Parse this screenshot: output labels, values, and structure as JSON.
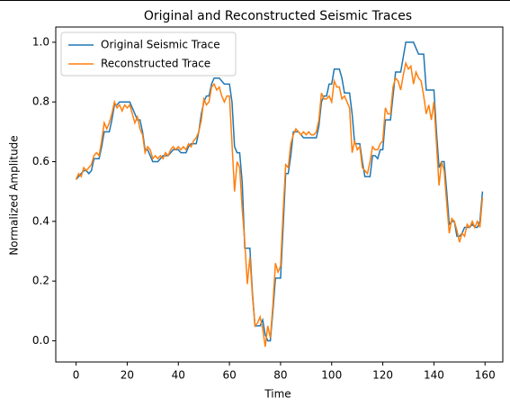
{
  "chart_data": {
    "type": "line",
    "title": "Original and Reconstructed Seismic Traces",
    "xlabel": "Time",
    "ylabel": "Normalized Amplitude",
    "x": [
      0,
      1,
      2,
      3,
      4,
      5,
      6,
      7,
      8,
      9,
      10,
      11,
      12,
      13,
      14,
      15,
      16,
      17,
      18,
      19,
      20,
      21,
      22,
      23,
      24,
      25,
      26,
      27,
      28,
      29,
      30,
      31,
      32,
      33,
      34,
      35,
      36,
      37,
      38,
      39,
      40,
      41,
      42,
      43,
      44,
      45,
      46,
      47,
      48,
      49,
      50,
      51,
      52,
      53,
      54,
      55,
      56,
      57,
      58,
      59,
      60,
      61,
      62,
      63,
      64,
      65,
      66,
      67,
      68,
      69,
      70,
      71,
      72,
      73,
      74,
      75,
      76,
      77,
      78,
      79,
      80,
      81,
      82,
      83,
      84,
      85,
      86,
      87,
      88,
      89,
      90,
      91,
      92,
      93,
      94,
      95,
      96,
      97,
      98,
      99,
      100,
      101,
      102,
      103,
      104,
      105,
      106,
      107,
      108,
      109,
      110,
      111,
      112,
      113,
      114,
      115,
      116,
      117,
      118,
      119,
      120,
      121,
      122,
      123,
      124,
      125,
      126,
      127,
      128,
      129,
      130,
      131,
      132,
      133,
      134,
      135,
      136,
      137,
      138,
      139,
      140,
      141,
      142,
      143,
      144,
      145,
      146,
      147,
      148,
      149,
      150,
      151,
      152,
      153,
      154,
      155,
      156,
      157,
      158,
      159
    ],
    "series": [
      {
        "name": "Original Seismic Trace",
        "color": "#1f77b4",
        "values": [
          0.54,
          0.55,
          0.56,
          0.57,
          0.57,
          0.56,
          0.57,
          0.61,
          0.61,
          0.61,
          0.65,
          0.7,
          0.7,
          0.7,
          0.74,
          0.79,
          0.79,
          0.8,
          0.8,
          0.8,
          0.8,
          0.8,
          0.78,
          0.76,
          0.74,
          0.74,
          0.7,
          0.64,
          0.64,
          0.62,
          0.6,
          0.6,
          0.6,
          0.61,
          0.62,
          0.62,
          0.62,
          0.63,
          0.64,
          0.64,
          0.64,
          0.63,
          0.63,
          0.63,
          0.65,
          0.66,
          0.66,
          0.66,
          0.7,
          0.76,
          0.8,
          0.82,
          0.82,
          0.86,
          0.88,
          0.88,
          0.88,
          0.87,
          0.86,
          0.86,
          0.86,
          0.8,
          0.65,
          0.63,
          0.63,
          0.53,
          0.31,
          0.31,
          0.31,
          0.16,
          0.05,
          0.05,
          0.05,
          0.07,
          0.02,
          0.0,
          0.0,
          0.1,
          0.21,
          0.21,
          0.21,
          0.38,
          0.56,
          0.56,
          0.62,
          0.7,
          0.7,
          0.7,
          0.69,
          0.68,
          0.68,
          0.68,
          0.68,
          0.68,
          0.68,
          0.72,
          0.8,
          0.82,
          0.82,
          0.86,
          0.86,
          0.91,
          0.91,
          0.91,
          0.88,
          0.83,
          0.83,
          0.83,
          0.76,
          0.66,
          0.66,
          0.66,
          0.6,
          0.55,
          0.55,
          0.55,
          0.62,
          0.62,
          0.61,
          0.64,
          0.64,
          0.74,
          0.74,
          0.74,
          0.82,
          0.9,
          0.9,
          0.9,
          0.95,
          1.0,
          1.0,
          1.0,
          1.0,
          0.98,
          0.96,
          0.96,
          0.96,
          0.84,
          0.84,
          0.84,
          0.84,
          0.7,
          0.58,
          0.6,
          0.6,
          0.5,
          0.39,
          0.4,
          0.4,
          0.35,
          0.35,
          0.36,
          0.38,
          0.38,
          0.38,
          0.39,
          0.38,
          0.38,
          0.4,
          0.5
        ]
      },
      {
        "name": "Reconstructed Trace",
        "color": "#ff7f0e",
        "values": [
          0.54,
          0.56,
          0.55,
          0.58,
          0.57,
          0.58,
          0.59,
          0.62,
          0.63,
          0.62,
          0.67,
          0.73,
          0.71,
          0.73,
          0.76,
          0.8,
          0.78,
          0.79,
          0.77,
          0.79,
          0.78,
          0.79,
          0.76,
          0.73,
          0.75,
          0.71,
          0.69,
          0.63,
          0.65,
          0.64,
          0.61,
          0.62,
          0.61,
          0.62,
          0.61,
          0.63,
          0.62,
          0.64,
          0.65,
          0.64,
          0.65,
          0.64,
          0.65,
          0.64,
          0.66,
          0.65,
          0.67,
          0.68,
          0.7,
          0.74,
          0.81,
          0.79,
          0.8,
          0.85,
          0.86,
          0.84,
          0.85,
          0.82,
          0.8,
          0.82,
          0.82,
          0.66,
          0.5,
          0.6,
          0.58,
          0.44,
          0.33,
          0.19,
          0.28,
          0.15,
          0.05,
          0.06,
          0.08,
          0.04,
          -0.02,
          0.05,
          0.01,
          0.12,
          0.26,
          0.23,
          0.25,
          0.43,
          0.59,
          0.58,
          0.66,
          0.69,
          0.71,
          0.7,
          0.69,
          0.7,
          0.69,
          0.7,
          0.69,
          0.69,
          0.7,
          0.74,
          0.83,
          0.81,
          0.81,
          0.82,
          0.8,
          0.87,
          0.85,
          0.85,
          0.81,
          0.82,
          0.8,
          0.78,
          0.63,
          0.67,
          0.64,
          0.65,
          0.58,
          0.57,
          0.56,
          0.6,
          0.65,
          0.64,
          0.64,
          0.66,
          0.67,
          0.78,
          0.76,
          0.76,
          0.85,
          0.88,
          0.87,
          0.84,
          0.89,
          0.93,
          0.91,
          0.92,
          0.86,
          0.9,
          0.88,
          0.87,
          0.82,
          0.76,
          0.79,
          0.74,
          0.8,
          0.66,
          0.52,
          0.6,
          0.57,
          0.46,
          0.36,
          0.41,
          0.4,
          0.37,
          0.33,
          0.36,
          0.35,
          0.39,
          0.38,
          0.4,
          0.38,
          0.4,
          0.38,
          0.48
        ]
      }
    ],
    "xlim": [
      -7.95,
      166.95
    ],
    "xticks": [
      0,
      20,
      40,
      60,
      80,
      100,
      120,
      140,
      160
    ],
    "ylim": [
      -0.071,
      1.051
    ],
    "yticks": [
      {
        "value": 0,
        "label": "0.0"
      },
      {
        "value": 0.2,
        "label": "0.2"
      },
      {
        "value": 0.4,
        "label": "0.4"
      },
      {
        "value": 0.6,
        "label": "0.6"
      },
      {
        "value": 0.8,
        "label": "0.8"
      },
      {
        "value": 1,
        "label": "1.0"
      }
    ],
    "legend": "upper left"
  }
}
